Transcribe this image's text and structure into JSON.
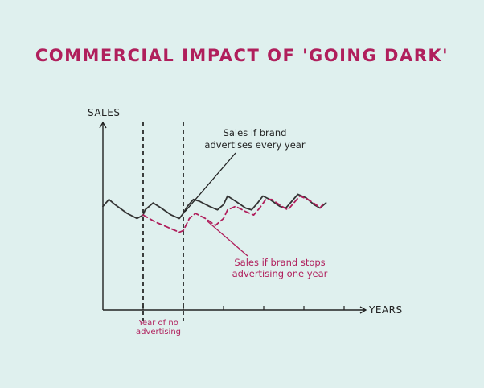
{
  "chart_data": {
    "type": "line",
    "title": "COMMERCIAL IMPACT OF 'GOING DARK'",
    "xlabel": "YEARS",
    "ylabel": "SALES",
    "xlim": [
      0,
      6
    ],
    "ylim": [
      0,
      10
    ],
    "marked_period": {
      "start": 1,
      "end": 2,
      "label_lines": [
        "Year of no",
        "advertising"
      ]
    },
    "series": [
      {
        "name": "Sales if brand advertises every year",
        "label_lines": [
          "Sales if brand",
          "advertises every year"
        ],
        "color": "#333333",
        "style": "solid",
        "points": [
          [
            0.0,
            6.0
          ],
          [
            0.15,
            6.4
          ],
          [
            0.3,
            6.1
          ],
          [
            0.6,
            5.6
          ],
          [
            0.85,
            5.3
          ],
          [
            1.0,
            5.5
          ],
          [
            1.05,
            5.8
          ],
          [
            1.25,
            6.2
          ],
          [
            1.45,
            5.9
          ],
          [
            1.7,
            5.5
          ],
          [
            1.9,
            5.3
          ],
          [
            2.0,
            5.6
          ],
          [
            2.1,
            6.0
          ],
          [
            2.25,
            6.4
          ],
          [
            2.4,
            6.3
          ],
          [
            2.65,
            6.0
          ],
          [
            2.85,
            5.8
          ],
          [
            3.0,
            6.1
          ],
          [
            3.1,
            6.6
          ],
          [
            3.3,
            6.3
          ],
          [
            3.55,
            5.9
          ],
          [
            3.7,
            5.8
          ],
          [
            3.85,
            6.2
          ],
          [
            3.98,
            6.6
          ],
          [
            4.15,
            6.4
          ],
          [
            4.4,
            6.0
          ],
          [
            4.55,
            5.9
          ],
          [
            4.7,
            6.3
          ],
          [
            4.85,
            6.7
          ],
          [
            5.05,
            6.5
          ],
          [
            5.25,
            6.1
          ],
          [
            5.4,
            5.9
          ],
          [
            5.5,
            6.1
          ],
          [
            5.55,
            6.2
          ]
        ]
      },
      {
        "name": "Sales if brand stops advertising one year",
        "label_lines": [
          "Sales if brand stops",
          "advertising one year"
        ],
        "color": "#b01f5c",
        "style": "dashed",
        "points": [
          [
            1.0,
            5.5
          ],
          [
            1.3,
            5.1
          ],
          [
            1.6,
            4.8
          ],
          [
            1.9,
            4.5
          ],
          [
            2.0,
            4.6
          ],
          [
            2.15,
            5.3
          ],
          [
            2.3,
            5.6
          ],
          [
            2.55,
            5.3
          ],
          [
            2.8,
            4.9
          ],
          [
            3.0,
            5.3
          ],
          [
            3.1,
            5.8
          ],
          [
            3.3,
            6.0
          ],
          [
            3.55,
            5.7
          ],
          [
            3.75,
            5.5
          ],
          [
            3.9,
            5.9
          ],
          [
            4.05,
            6.4
          ],
          [
            4.2,
            6.4
          ],
          [
            4.45,
            6.0
          ],
          [
            4.6,
            5.8
          ],
          [
            4.75,
            6.2
          ],
          [
            4.9,
            6.6
          ],
          [
            5.1,
            6.4
          ],
          [
            5.3,
            6.1
          ],
          [
            5.4,
            5.9
          ],
          [
            5.5,
            6.2
          ]
        ]
      }
    ],
    "grid": false
  }
}
